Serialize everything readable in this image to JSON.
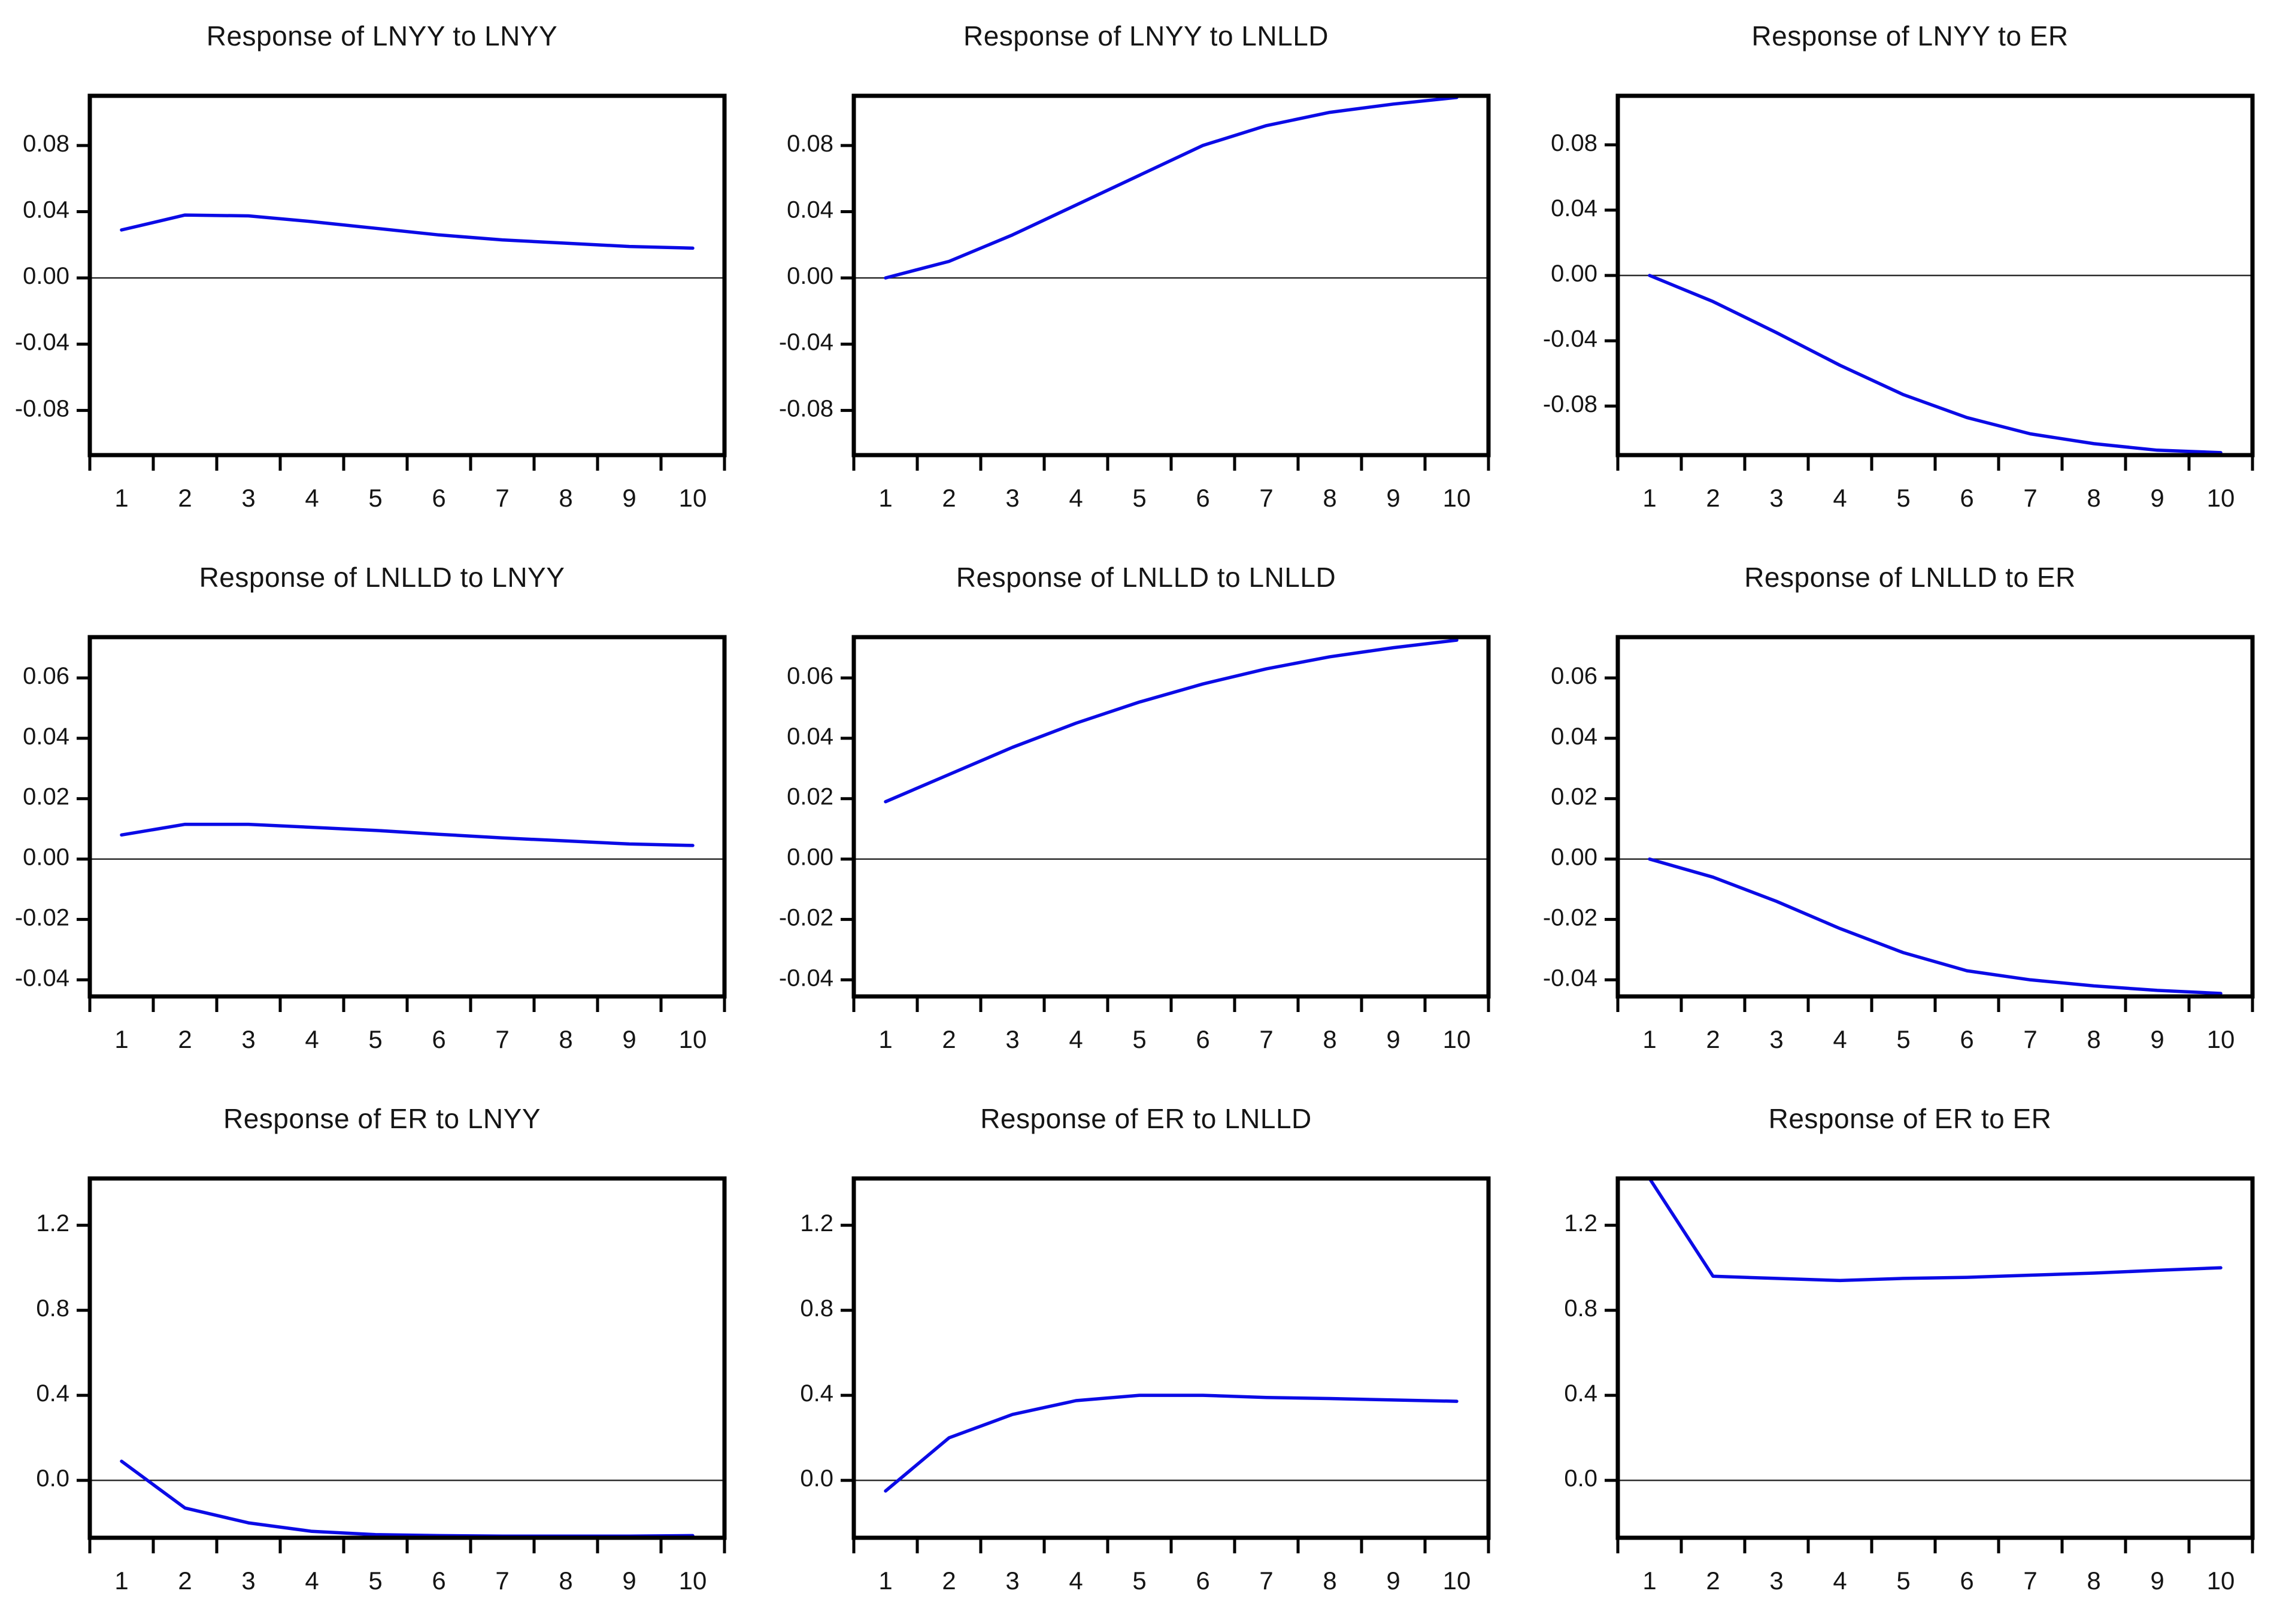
{
  "page": {
    "background": "#ffffff",
    "axis_color": "#000000",
    "zero_line_color": "#2b2b2b",
    "text_color": "#151515",
    "line_color": "#0b0be6",
    "grid": "off",
    "legend": "none",
    "layout": {
      "rows": 3,
      "cols": 3
    }
  },
  "chart_data": [
    {
      "type": "line",
      "title": "Response of LNYY to LNYY",
      "xlabel": "",
      "ylabel": "",
      "x": [
        1,
        2,
        3,
        4,
        5,
        6,
        7,
        8,
        9,
        10
      ],
      "values": [
        0.029,
        0.038,
        0.0375,
        0.034,
        0.03,
        0.026,
        0.023,
        0.021,
        0.019,
        0.018
      ],
      "x_tick_labels": [
        "1",
        "2",
        "3",
        "4",
        "5",
        "6",
        "7",
        "8",
        "9",
        "10"
      ],
      "y_tick_values": [
        0.08,
        0.04,
        0.0,
        -0.04,
        -0.08
      ],
      "y_tick_labels": [
        "0.08",
        "0.04",
        "0.00",
        "-0.04",
        "-0.08"
      ],
      "ylim": [
        -0.107,
        0.11
      ],
      "zero_line": true
    },
    {
      "type": "line",
      "title": "Response of LNYY to LNLLD",
      "xlabel": "",
      "ylabel": "",
      "x": [
        1,
        2,
        3,
        4,
        5,
        6,
        7,
        8,
        9,
        10
      ],
      "values": [
        0.0,
        0.01,
        0.026,
        0.044,
        0.062,
        0.08,
        0.092,
        0.1,
        0.105,
        0.109
      ],
      "x_tick_labels": [
        "1",
        "2",
        "3",
        "4",
        "5",
        "6",
        "7",
        "8",
        "9",
        "10"
      ],
      "y_tick_values": [
        0.08,
        0.04,
        0.0,
        -0.04,
        -0.08
      ],
      "y_tick_labels": [
        "0.08",
        "0.04",
        "0.00",
        "-0.04",
        "-0.08"
      ],
      "ylim": [
        -0.107,
        0.11
      ],
      "zero_line": true
    },
    {
      "type": "line",
      "title": "Response of LNYY to ER",
      "xlabel": "",
      "ylabel": "",
      "x": [
        1,
        2,
        3,
        4,
        5,
        6,
        7,
        8,
        9,
        10
      ],
      "values": [
        0.0,
        -0.016,
        -0.035,
        -0.055,
        -0.073,
        -0.087,
        -0.097,
        -0.103,
        -0.107,
        -0.1085
      ],
      "x_tick_labels": [
        "1",
        "2",
        "3",
        "4",
        "5",
        "6",
        "7",
        "8",
        "9",
        "10"
      ],
      "y_tick_values": [
        0.08,
        0.04,
        0.0,
        -0.04,
        -0.08
      ],
      "y_tick_labels": [
        "0.08",
        "0.04",
        "0.00",
        "-0.04",
        "-0.08"
      ],
      "ylim": [
        -0.11,
        0.11
      ],
      "zero_line": true
    },
    {
      "type": "line",
      "title": "Response of LNLLD to LNYY",
      "xlabel": "",
      "ylabel": "",
      "x": [
        1,
        2,
        3,
        4,
        5,
        6,
        7,
        8,
        9,
        10
      ],
      "values": [
        0.008,
        0.0115,
        0.0115,
        0.0105,
        0.0095,
        0.0082,
        0.007,
        0.006,
        0.005,
        0.0045
      ],
      "x_tick_labels": [
        "1",
        "2",
        "3",
        "4",
        "5",
        "6",
        "7",
        "8",
        "9",
        "10"
      ],
      "y_tick_values": [
        0.06,
        0.04,
        0.02,
        0.0,
        -0.02,
        -0.04
      ],
      "y_tick_labels": [
        "0.06",
        "0.04",
        "0.02",
        "0.00",
        "-0.02",
        "-0.04"
      ],
      "ylim": [
        -0.0455,
        0.0735
      ],
      "zero_line": true
    },
    {
      "type": "line",
      "title": "Response of LNLLD to LNLLD",
      "xlabel": "",
      "ylabel": "",
      "x": [
        1,
        2,
        3,
        4,
        5,
        6,
        7,
        8,
        9,
        10
      ],
      "values": [
        0.019,
        0.028,
        0.037,
        0.045,
        0.052,
        0.058,
        0.063,
        0.067,
        0.07,
        0.0725
      ],
      "x_tick_labels": [
        "1",
        "2",
        "3",
        "4",
        "5",
        "6",
        "7",
        "8",
        "9",
        "10"
      ],
      "y_tick_values": [
        0.06,
        0.04,
        0.02,
        0.0,
        -0.02,
        -0.04
      ],
      "y_tick_labels": [
        "0.06",
        "0.04",
        "0.02",
        "0.00",
        "-0.02",
        "-0.04"
      ],
      "ylim": [
        -0.0455,
        0.0735
      ],
      "zero_line": true
    },
    {
      "type": "line",
      "title": "Response of LNLLD to ER",
      "xlabel": "",
      "ylabel": "",
      "x": [
        1,
        2,
        3,
        4,
        5,
        6,
        7,
        8,
        9,
        10
      ],
      "values": [
        0.0,
        -0.006,
        -0.014,
        -0.023,
        -0.031,
        -0.037,
        -0.04,
        -0.042,
        -0.0435,
        -0.0445
      ],
      "x_tick_labels": [
        "1",
        "2",
        "3",
        "4",
        "5",
        "6",
        "7",
        "8",
        "9",
        "10"
      ],
      "y_tick_values": [
        0.06,
        0.04,
        0.02,
        0.0,
        -0.02,
        -0.04
      ],
      "y_tick_labels": [
        "0.06",
        "0.04",
        "0.02",
        "0.00",
        "-0.02",
        "-0.04"
      ],
      "ylim": [
        -0.0455,
        0.0735
      ],
      "zero_line": true
    },
    {
      "type": "line",
      "title": "Response of ER to LNYY",
      "xlabel": "",
      "ylabel": "",
      "x": [
        1,
        2,
        3,
        4,
        5,
        6,
        7,
        8,
        9,
        10
      ],
      "values": [
        0.09,
        -0.13,
        -0.2,
        -0.24,
        -0.255,
        -0.26,
        -0.262,
        -0.262,
        -0.262,
        -0.26
      ],
      "x_tick_labels": [
        "1",
        "2",
        "3",
        "4",
        "5",
        "6",
        "7",
        "8",
        "9",
        "10"
      ],
      "y_tick_values": [
        1.2,
        0.8,
        0.4,
        0.0
      ],
      "y_tick_labels": [
        "1.2",
        "0.8",
        "0.4",
        "0.0"
      ],
      "ylim": [
        -0.27,
        1.42
      ],
      "zero_line": true
    },
    {
      "type": "line",
      "title": "Response of ER to LNLLD",
      "xlabel": "",
      "ylabel": "",
      "x": [
        1,
        2,
        3,
        4,
        5,
        6,
        7,
        8,
        9,
        10
      ],
      "values": [
        -0.05,
        0.2,
        0.31,
        0.375,
        0.4,
        0.4,
        0.39,
        0.385,
        0.378,
        0.372
      ],
      "x_tick_labels": [
        "1",
        "2",
        "3",
        "4",
        "5",
        "6",
        "7",
        "8",
        "9",
        "10"
      ],
      "y_tick_values": [
        1.2,
        0.8,
        0.4,
        0.0
      ],
      "y_tick_labels": [
        "1.2",
        "0.8",
        "0.4",
        "0.0"
      ],
      "ylim": [
        -0.27,
        1.42
      ],
      "zero_line": true
    },
    {
      "type": "line",
      "title": "Response of ER to ER",
      "xlabel": "",
      "ylabel": "",
      "x": [
        1,
        2,
        3,
        4,
        5,
        6,
        7,
        8,
        9,
        10
      ],
      "values": [
        1.42,
        0.96,
        0.95,
        0.94,
        0.95,
        0.955,
        0.965,
        0.975,
        0.988,
        1.0
      ],
      "x_tick_labels": [
        "1",
        "2",
        "3",
        "4",
        "5",
        "6",
        "7",
        "8",
        "9",
        "10"
      ],
      "y_tick_values": [
        1.2,
        0.8,
        0.4,
        0.0
      ],
      "y_tick_labels": [
        "1.2",
        "0.8",
        "0.4",
        "0.0"
      ],
      "ylim": [
        -0.27,
        1.42
      ],
      "zero_line": true
    }
  ]
}
